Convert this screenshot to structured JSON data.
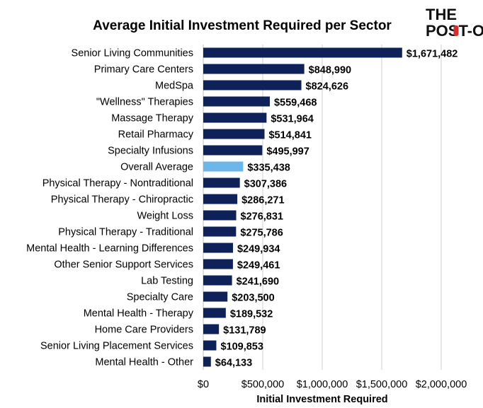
{
  "chart_data": {
    "type": "bar",
    "orientation": "horizontal",
    "title": "Average Initial Investment Required per Sector",
    "xlabel": "Initial Investment Required",
    "ylabel": "",
    "xlim": [
      0,
      2000000
    ],
    "ticks": [
      0,
      500000,
      1000000,
      1500000,
      2000000
    ],
    "tick_labels": [
      "$0",
      "$500,000",
      "$1,000,000",
      "$1,500,000",
      "$2,000,000"
    ],
    "grid": true,
    "categories": [
      "Senior Living Communities",
      "Primary Care Centers",
      "MedSpa",
      "\"Wellness\" Therapies",
      "Massage Therapy",
      "Retail Pharmacy",
      "Specialty Infusions",
      "Overall Average",
      "Physical Therapy - Nontraditional",
      "Physical Therapy - Chiropractic",
      "Weight Loss",
      "Physical Therapy - Traditional",
      "Mental Health - Learning Differences",
      "Other Senior Support Services",
      "Lab Testing",
      "Specialty Care",
      "Mental Health - Therapy",
      "Home Care Providers",
      "Senior Living Placement Services",
      "Mental Health - Other"
    ],
    "values": [
      1671482,
      848990,
      824626,
      559468,
      531964,
      514841,
      495997,
      335438,
      307386,
      286271,
      276831,
      275786,
      249934,
      249461,
      241690,
      203500,
      189532,
      131789,
      109853,
      64133
    ],
    "value_labels": [
      "$1,671,482",
      "$848,990",
      "$824,626",
      "$559,468",
      "$531,964",
      "$514,841",
      "$495,997",
      "$335,438",
      "$307,386",
      "$286,271",
      "$276,831",
      "$275,786",
      "$249,934",
      "$249,461",
      "$241,690",
      "$203,500",
      "$189,532",
      "$131,789",
      "$109,853",
      "$64,133"
    ],
    "highlight_index": 7,
    "colors": {
      "bar": "#0e2159",
      "highlight": "#6db6ea",
      "grid": "#d0d0d0"
    }
  },
  "logo": {
    "line1": "THE",
    "line2": "POST-OP"
  }
}
